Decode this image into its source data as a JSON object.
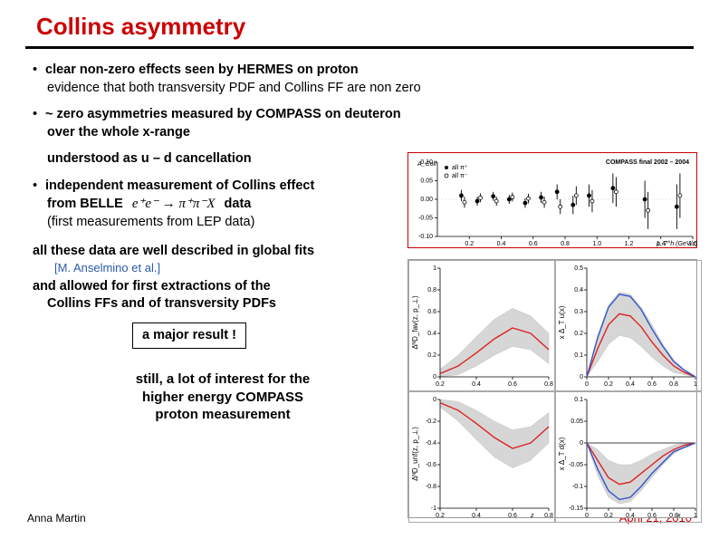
{
  "title": "Collins asymmetry",
  "bullets": {
    "b1_bold": "clear non-zero effects seen by HERMES on proton",
    "b1_sub": "evidence that both transversity PDF and Collins FF are non zero",
    "b2_bold": "~ zero asymmetries measured by COMPASS on deuteron",
    "b2_sub_bold": "over the whole x-range",
    "b3": "understood as u – d cancellation",
    "b4a": "independent measurement of Collins effect",
    "b4b": "from BELLE",
    "b4c": "data",
    "equation": "e⁺e⁻ → π⁺π⁻X",
    "b4_sub": "(first measurements from LEP data)",
    "fits": "all these data are well described in global fits",
    "ref": "[M. Anselmino et al.]",
    "allowed1": "and allowed for first extractions of the",
    "allowed2": "Collins FFs and of  transversity PDFs",
    "major": "a major result !",
    "still1": "still, a lot of interest for the",
    "still2": "higher energy COMPASS",
    "still3": "proton measurement"
  },
  "footer": {
    "author": "Anna Martin",
    "date": "April 21, 2010"
  },
  "compass_chart": {
    "title": "COMPASS final 2002 – 2004",
    "legend": [
      "all π⁺",
      "all π⁻"
    ],
    "ylabel": "A_Coll",
    "xlabel": "p_T^h (GeV/c)",
    "ylim": [
      -0.1,
      0.1
    ],
    "ytick_step": 0.05,
    "xlim": [
      0.0,
      1.6
    ],
    "xtick_step": 0.2,
    "points_plus": {
      "x": [
        0.15,
        0.25,
        0.35,
        0.45,
        0.55,
        0.65,
        0.75,
        0.85,
        0.95,
        1.1,
        1.3,
        1.5
      ],
      "y": [
        0.01,
        -0.005,
        0.008,
        0.0,
        -0.01,
        0.005,
        0.02,
        -0.015,
        0.01,
        0.03,
        0.0,
        -0.02
      ],
      "ey": [
        0.015,
        0.012,
        0.012,
        0.012,
        0.013,
        0.015,
        0.02,
        0.025,
        0.03,
        0.04,
        0.05,
        0.06
      ]
    },
    "points_minus": {
      "x": [
        0.17,
        0.27,
        0.37,
        0.47,
        0.57,
        0.67,
        0.77,
        0.87,
        0.97,
        1.12,
        1.32,
        1.52
      ],
      "y": [
        -0.008,
        0.004,
        -0.005,
        0.006,
        0.002,
        -0.008,
        -0.02,
        0.01,
        -0.005,
        0.02,
        -0.03,
        0.01
      ],
      "ey": [
        0.015,
        0.012,
        0.012,
        0.012,
        0.013,
        0.015,
        0.02,
        0.025,
        0.03,
        0.04,
        0.05,
        0.06
      ]
    },
    "grid_color": "#888888",
    "marker_plus": "filled-circle",
    "marker_minus": "open-circle"
  },
  "panels": {
    "common": {
      "background": "#ffffff",
      "band_color": "#bbbbbb",
      "curve_color_red": "#d02020",
      "curve_color_blue": "#3355cc"
    },
    "p11": {
      "ylabel": "ΔᴺD_fav(z, p_⊥)",
      "xlim": [
        0.2,
        0.8
      ],
      "xtick": [
        0.2,
        0.4,
        0.6,
        0.8
      ],
      "ylim": [
        0,
        1.0
      ],
      "ytick": [
        0,
        0.2,
        0.4,
        0.6,
        0.8,
        1
      ],
      "curve": {
        "x": [
          0.2,
          0.3,
          0.4,
          0.5,
          0.6,
          0.7,
          0.8
        ],
        "y": [
          0.03,
          0.1,
          0.22,
          0.35,
          0.45,
          0.4,
          0.25
        ]
      },
      "band_lo": [
        0.0,
        0.02,
        0.1,
        0.2,
        0.28,
        0.25,
        0.12
      ],
      "band_hi": [
        0.07,
        0.2,
        0.37,
        0.53,
        0.63,
        0.56,
        0.4
      ]
    },
    "p12": {
      "ylabel": "x Δ_T u(x)",
      "xlim": [
        0,
        1.0
      ],
      "xtick": [
        0,
        0.2,
        0.4,
        0.6,
        0.8,
        1
      ],
      "ylim": [
        0,
        0.5
      ],
      "ytick": [
        0,
        0.1,
        0.2,
        0.3,
        0.4,
        0.5
      ],
      "curve_red": {
        "x": [
          0.0,
          0.1,
          0.2,
          0.3,
          0.4,
          0.5,
          0.6,
          0.7,
          0.8,
          0.9,
          1.0
        ],
        "y": [
          0.0,
          0.13,
          0.24,
          0.29,
          0.28,
          0.23,
          0.16,
          0.1,
          0.05,
          0.02,
          0.0
        ]
      },
      "curve_blue": {
        "x": [
          0.0,
          0.1,
          0.2,
          0.3,
          0.4,
          0.5,
          0.6,
          0.7,
          0.8,
          0.9,
          1.0
        ],
        "y": [
          0.0,
          0.18,
          0.32,
          0.38,
          0.37,
          0.31,
          0.22,
          0.14,
          0.07,
          0.03,
          0.0
        ]
      },
      "band_lo": [
        0.0,
        0.07,
        0.15,
        0.19,
        0.18,
        0.14,
        0.09,
        0.05,
        0.02,
        0.01,
        0.0
      ],
      "band_hi": [
        0.0,
        0.19,
        0.33,
        0.39,
        0.38,
        0.32,
        0.24,
        0.15,
        0.08,
        0.03,
        0.0
      ]
    },
    "p21": {
      "ylabel": "ΔᴺD_unf(z, p_⊥)",
      "xlim": [
        0.2,
        0.8
      ],
      "xtick": [
        0.2,
        0.4,
        0.6,
        0.8
      ],
      "ylim": [
        -1.0,
        0
      ],
      "ytick": [
        -1,
        -0.8,
        -0.6,
        -0.4,
        -0.2,
        0
      ],
      "curve": {
        "x": [
          0.2,
          0.3,
          0.4,
          0.5,
          0.6,
          0.7,
          0.8
        ],
        "y": [
          -0.03,
          -0.1,
          -0.22,
          -0.35,
          -0.45,
          -0.4,
          -0.25
        ]
      },
      "band_lo": [
        -0.07,
        -0.2,
        -0.37,
        -0.53,
        -0.63,
        -0.56,
        -0.4
      ],
      "band_hi": [
        0.0,
        -0.02,
        -0.1,
        -0.2,
        -0.28,
        -0.25,
        -0.12
      ],
      "xlabel": "z"
    },
    "p22": {
      "ylabel": "x Δ_T d(x)",
      "xlim": [
        0,
        1.0
      ],
      "xtick": [
        0,
        0.2,
        0.4,
        0.6,
        0.8,
        1
      ],
      "ylim": [
        -0.15,
        0.1
      ],
      "ytick": [
        -0.15,
        -0.1,
        -0.05,
        0,
        0.05,
        0.1
      ],
      "curve_red": {
        "x": [
          0.0,
          0.1,
          0.2,
          0.3,
          0.4,
          0.5,
          0.6,
          0.7,
          0.8,
          0.9,
          1.0
        ],
        "y": [
          0.0,
          -0.04,
          -0.08,
          -0.095,
          -0.09,
          -0.07,
          -0.05,
          -0.03,
          -0.015,
          -0.005,
          0.0
        ]
      },
      "curve_blue": {
        "x": [
          0.0,
          0.1,
          0.2,
          0.3,
          0.4,
          0.5,
          0.6,
          0.7,
          0.8,
          0.9,
          1.0
        ],
        "y": [
          0.0,
          -0.06,
          -0.11,
          -0.13,
          -0.125,
          -0.1,
          -0.07,
          -0.045,
          -0.02,
          -0.01,
          0.0
        ]
      },
      "band_lo": [
        0.0,
        -0.075,
        -0.125,
        -0.14,
        -0.135,
        -0.11,
        -0.08,
        -0.05,
        -0.025,
        -0.01,
        0.0
      ],
      "band_hi": [
        0.0,
        -0.015,
        -0.04,
        -0.05,
        -0.05,
        -0.04,
        -0.025,
        -0.015,
        -0.005,
        0.0,
        0.0
      ],
      "xlabel": "x"
    }
  }
}
